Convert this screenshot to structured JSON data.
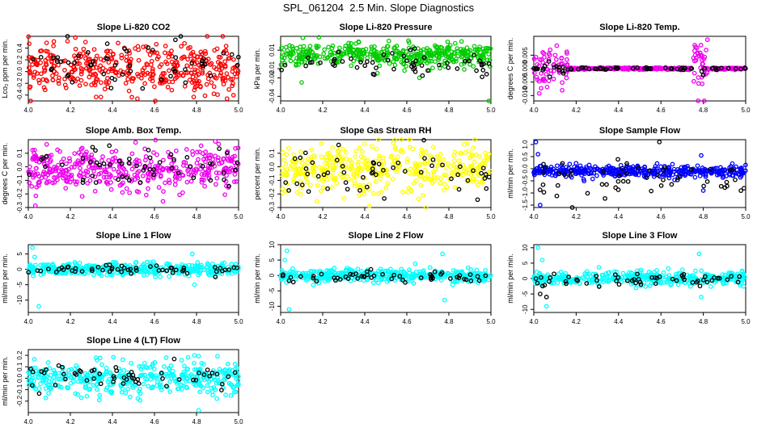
{
  "page_title": "SPL_061204  2.5 Min. Slope Diagnostics",
  "chart_data": [
    {
      "type": "scatter",
      "title": "Slope Li-820 CO2",
      "ylabel": "Lco₂ ppm per min.",
      "xlim": [
        4.0,
        5.0
      ],
      "ylim": [
        -0.5,
        0.6
      ],
      "yticks": [
        -0.4,
        -0.2,
        0.0,
        0.2,
        0.4
      ],
      "ytick_labels": [
        "-0.4",
        "-0.2",
        "0.0",
        "0.2",
        "0.4"
      ],
      "xticks": [
        4.0,
        4.2,
        4.4,
        4.6,
        4.8,
        5.0
      ],
      "xtick_labels": [
        "4.0",
        "4.2",
        "4.4",
        "4.6",
        "4.8",
        "5.0"
      ],
      "series": [
        {
          "color": "#ff0000",
          "count": 420,
          "center": 0.05,
          "spread": 0.2,
          "spikes": []
        },
        {
          "color": "#000000",
          "count": 55,
          "center": 0.12,
          "spread": 0.22,
          "spikes": []
        }
      ]
    },
    {
      "type": "scatter",
      "title": "Slope Li-820 Pressure",
      "ylabel": "kPa per min.",
      "xlim": [
        4.0,
        5.0
      ],
      "ylim": [
        -0.045,
        0.025
      ],
      "yticks": [
        -0.04,
        -0.02,
        -0.01,
        0.01
      ],
      "ytick_labels": [
        "-0.04",
        "-0.02",
        "-0.01",
        "0.01"
      ],
      "xticks": [
        4.0,
        4.2,
        4.4,
        4.6,
        4.8,
        5.0
      ],
      "xtick_labels": [
        "4.0",
        "4.2",
        "4.4",
        "4.6",
        "4.8",
        "5.0"
      ],
      "series": [
        {
          "color": "#00cc00",
          "count": 420,
          "center": 0.005,
          "spread": 0.006,
          "spikes": [
            [
              4.1,
              -0.025
            ],
            [
              4.46,
              -0.015
            ],
            [
              4.66,
              -0.02
            ],
            [
              4.99,
              -0.045
            ],
            [
              4.98,
              0.012
            ]
          ]
        },
        {
          "color": "#000000",
          "count": 55,
          "center": -0.005,
          "spread": 0.007,
          "spikes": [
            [
              4.7,
              -0.012
            ],
            [
              4.84,
              -0.01
            ]
          ]
        }
      ]
    },
    {
      "type": "scatter",
      "title": "Slope Li-820 Temp.",
      "ylabel": "degrees C per min.",
      "xlim": [
        4.0,
        5.0
      ],
      "ylim": [
        -0.012,
        0.012
      ],
      "yticks": [
        -0.01,
        -0.005,
        0.0,
        0.005
      ],
      "ytick_labels": [
        "-0.010",
        "-0.005",
        "0.000",
        "0.005"
      ],
      "xticks": [
        4.0,
        4.2,
        4.4,
        4.6,
        4.8,
        5.0
      ],
      "xtick_labels": [
        "4.0",
        "4.2",
        "4.4",
        "4.6",
        "4.8",
        "5.0"
      ],
      "series": [
        {
          "color": "#ee00ee",
          "count": 420,
          "center": 0.0,
          "spread": 0.0002,
          "spikes": [],
          "bursts": [
            [
              4.0,
              4.16,
              0.004
            ],
            [
              4.75,
              4.82,
              0.005
            ]
          ]
        },
        {
          "color": "#000000",
          "count": 70,
          "center": 0.0,
          "spread": 0.0002,
          "spikes": [],
          "bursts": [
            [
              4.05,
              4.15,
              0.002
            ],
            [
              4.76,
              4.8,
              0.002
            ]
          ]
        }
      ]
    },
    {
      "type": "scatter",
      "title": "Slope Amb. Box Temp.",
      "ylabel": "degrees C per min.",
      "xlim": [
        4.0,
        5.0
      ],
      "ylim": [
        -0.3,
        0.2
      ],
      "yticks": [
        -0.3,
        -0.2,
        -0.1,
        0.0,
        0.1
      ],
      "ytick_labels": [
        "-0.3",
        "-0.2",
        "-0.1",
        "0.0",
        "0.1"
      ],
      "xticks": [
        4.0,
        4.2,
        4.4,
        4.6,
        4.8,
        5.0
      ],
      "xtick_labels": [
        "4.0",
        "4.2",
        "4.4",
        "4.6",
        "4.8",
        "5.0"
      ],
      "series": [
        {
          "color": "#ee00ee",
          "count": 420,
          "center": -0.02,
          "spread": 0.08,
          "spikes": []
        },
        {
          "color": "#000000",
          "count": 55,
          "center": 0.0,
          "spread": 0.08,
          "spikes": []
        }
      ]
    },
    {
      "type": "scatter",
      "title": "Slope Gas Stream RH",
      "ylabel": "percent per min.",
      "xlim": [
        4.0,
        5.0
      ],
      "ylim": [
        -0.3,
        0.2
      ],
      "yticks": [
        -0.3,
        -0.2,
        -0.1,
        0.0,
        0.1
      ],
      "ytick_labels": [
        "-0.3",
        "-0.2",
        "-0.1",
        "0.0",
        "0.1"
      ],
      "xticks": [
        4.0,
        4.2,
        4.4,
        4.6,
        4.8,
        5.0
      ],
      "xtick_labels": [
        "4.0",
        "4.2",
        "4.4",
        "4.6",
        "4.8",
        "5.0"
      ],
      "series": [
        {
          "color": "#ffff00",
          "count": 420,
          "center": -0.02,
          "spread": 0.09,
          "spikes": []
        },
        {
          "color": "#000000",
          "count": 55,
          "center": -0.03,
          "spread": 0.08,
          "spikes": []
        }
      ]
    },
    {
      "type": "scatter",
      "title": "Slope Sample Flow",
      "ylabel": "ml/min per min.",
      "xlim": [
        4.0,
        5.0
      ],
      "ylim": [
        -1.6,
        1.2
      ],
      "yticks": [
        -1.5,
        -1.0,
        -0.5,
        0.0,
        0.5,
        1.0
      ],
      "ytick_labels": [
        "-1.5",
        "-1.0",
        "-0.5",
        "0.0",
        "0.5",
        "1.0"
      ],
      "xticks": [
        4.0,
        4.2,
        4.4,
        4.6,
        4.8,
        5.0
      ],
      "xtick_labels": [
        "4.0",
        "4.2",
        "4.4",
        "4.6",
        "4.8",
        "5.0"
      ],
      "series": [
        {
          "color": "#0000ff",
          "count": 420,
          "center": -0.1,
          "spread": 0.12,
          "spikes": [
            [
              4.01,
              1.1
            ],
            [
              4.03,
              -1.5
            ],
            [
              4.02,
              0.6
            ],
            [
              4.79,
              0.55
            ],
            [
              4.8,
              -0.9
            ]
          ]
        },
        {
          "color": "#000000",
          "count": 55,
          "center": -0.5,
          "spread": 0.45,
          "spikes": []
        }
      ]
    },
    {
      "type": "scatter",
      "title": "Slope Line 1 Flow",
      "ylabel": "ml/min per min.",
      "xlim": [
        4.0,
        5.0
      ],
      "ylim": [
        -14,
        8
      ],
      "yticks": [
        -10,
        -5,
        0,
        5
      ],
      "ytick_labels": [
        "-10",
        "-5",
        "0",
        "5"
      ],
      "xticks": [
        4.0,
        4.2,
        4.4,
        4.6,
        4.8,
        5.0
      ],
      "xtick_labels": [
        "4.0",
        "4.2",
        "4.4",
        "4.6",
        "4.8",
        "5.0"
      ],
      "series": [
        {
          "color": "#00ffff",
          "count": 420,
          "center": 0.0,
          "spread": 1.0,
          "spikes": [
            [
              4.02,
              7
            ],
            [
              4.05,
              -12
            ],
            [
              4.03,
              4
            ],
            [
              4.78,
              5
            ],
            [
              4.79,
              -5
            ]
          ]
        },
        {
          "color": "#000000",
          "count": 55,
          "center": 0.0,
          "spread": 0.8,
          "spikes": []
        }
      ]
    },
    {
      "type": "scatter",
      "title": "Slope Line 2 Flow",
      "ylabel": "ml/min per min.",
      "xlim": [
        4.0,
        5.0
      ],
      "ylim": [
        -12,
        10
      ],
      "yticks": [
        -10,
        -5,
        0,
        5,
        10
      ],
      "ytick_labels": [
        "-10",
        "-5",
        "0",
        "5",
        "10"
      ],
      "xticks": [
        4.0,
        4.2,
        4.4,
        4.6,
        4.8,
        5.0
      ],
      "xtick_labels": [
        "4.0",
        "4.2",
        "4.4",
        "4.6",
        "4.8",
        "5.0"
      ],
      "series": [
        {
          "color": "#00ffff",
          "count": 420,
          "center": 0.0,
          "spread": 1.0,
          "spikes": [
            [
              4.03,
              8
            ],
            [
              4.04,
              -11
            ],
            [
              4.02,
              5
            ],
            [
              4.77,
              7
            ],
            [
              4.78,
              -8
            ]
          ]
        },
        {
          "color": "#000000",
          "count": 55,
          "center": -0.5,
          "spread": 1.0,
          "spikes": []
        }
      ]
    },
    {
      "type": "scatter",
      "title": "Slope Line 3 Flow",
      "ylabel": "ml/min per min.",
      "xlim": [
        4.0,
        5.0
      ],
      "ylim": [
        -11,
        11
      ],
      "yticks": [
        -10,
        -5,
        0,
        5,
        10
      ],
      "ytick_labels": [
        "-10",
        "-5",
        "0",
        "5",
        "10"
      ],
      "xticks": [
        4.0,
        4.2,
        4.4,
        4.6,
        4.8,
        5.0
      ],
      "xtick_labels": [
        "4.0",
        "4.2",
        "4.4",
        "4.6",
        "4.8",
        "5.0"
      ],
      "series": [
        {
          "color": "#00ffff",
          "count": 420,
          "center": 0.0,
          "spread": 1.1,
          "spikes": [
            [
              4.02,
              10
            ],
            [
              4.06,
              -9
            ],
            [
              4.04,
              6
            ],
            [
              4.78,
              8
            ],
            [
              4.79,
              -6
            ]
          ]
        },
        {
          "color": "#000000",
          "count": 55,
          "center": -0.5,
          "spread": 1.0,
          "spikes": [
            [
              4.03,
              -5
            ],
            [
              4.06,
              -6
            ]
          ]
        }
      ]
    },
    {
      "type": "scatter",
      "title": "Slope Line 4 (LT) Flow",
      "ylabel": "ml/min per min.",
      "xlim": [
        4.0,
        5.0
      ],
      "ylim": [
        -0.3,
        0.25
      ],
      "yticks": [
        -0.2,
        -0.1,
        0.0,
        0.1,
        0.2
      ],
      "ytick_labels": [
        "-0.2",
        "-0.1",
        "0.0",
        "0.1",
        "0.2"
      ],
      "xticks": [
        4.0,
        4.2,
        4.4,
        4.6,
        4.8,
        5.0
      ],
      "xtick_labels": [
        "4.0",
        "4.2",
        "4.4",
        "4.6",
        "4.8",
        "5.0"
      ],
      "series": [
        {
          "color": "#00ffff",
          "count": 420,
          "center": 0.0,
          "spread": 0.07,
          "spikes": [
            [
              4.81,
              -0.28
            ],
            [
              4.79,
              0.2
            ]
          ]
        },
        {
          "color": "#000000",
          "count": 55,
          "center": 0.02,
          "spread": 0.06,
          "spikes": []
        }
      ]
    }
  ]
}
